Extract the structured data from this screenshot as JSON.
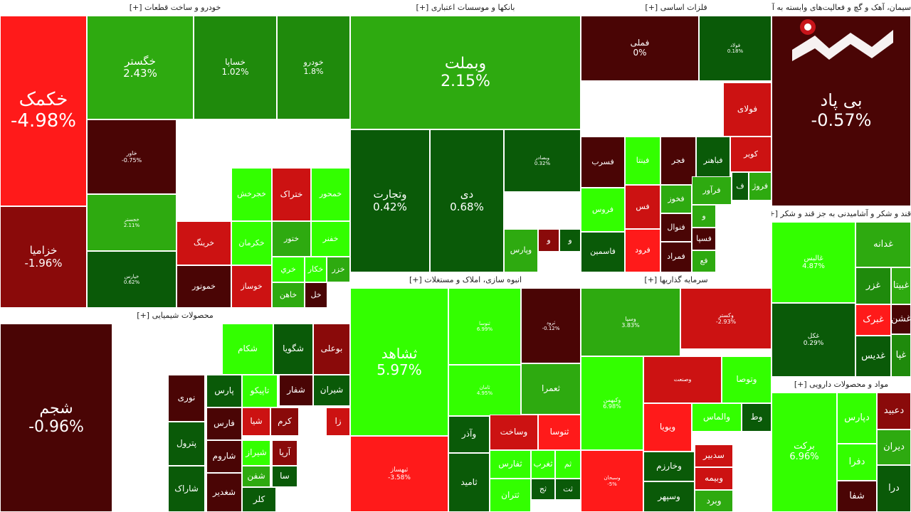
{
  "colors": {
    "bright_green": "#33ff00",
    "green": "#2eaa10",
    "mid_green": "#1f8a0c",
    "dark_green": "#0a5a08",
    "bright_red": "#ff1a1a",
    "red": "#cc1212",
    "dark_red": "#8a0a0a",
    "darkest_red": "#4a0505"
  },
  "chart_data": {
    "type": "heatmap",
    "sectors": [
      {
        "name": "خودرو و ساخت قطعات [+]",
        "tiles": [
          {
            "symbol": "خکمک",
            "change": "-4.98%"
          },
          {
            "symbol": "خگستر",
            "change": "2.43%"
          },
          {
            "symbol": "خساپا",
            "change": "1.02%"
          },
          {
            "symbol": "خودرو",
            "change": "1.8%"
          },
          {
            "symbol": "خاور",
            "change": "-0.75%"
          },
          {
            "symbol": "خزامیا",
            "change": "-1.96%"
          },
          {
            "symbol": "خجستر",
            "change": "2.11%"
          },
          {
            "symbol": "خپارس",
            "change": "0.62%"
          },
          {
            "symbol": "ختراک",
            "change": ""
          },
          {
            "symbol": "خجرخش",
            "change": ""
          },
          {
            "symbol": "خمحور",
            "change": ""
          },
          {
            "symbol": "خرینگ",
            "change": ""
          },
          {
            "symbol": "خکرمان",
            "change": ""
          },
          {
            "symbol": "ختور",
            "change": ""
          },
          {
            "symbol": "خفنر",
            "change": ""
          },
          {
            "symbol": "خموتور",
            "change": ""
          },
          {
            "symbol": "خوساز",
            "change": ""
          },
          {
            "symbol": "خري",
            "change": ""
          },
          {
            "symbol": "خکار",
            "change": ""
          },
          {
            "symbol": "خزر",
            "change": ""
          },
          {
            "symbol": "خاهن",
            "change": ""
          },
          {
            "symbol": "خل",
            "change": ""
          }
        ]
      },
      {
        "name": "بانکها و موسسات اعتباری [+]",
        "tiles": [
          {
            "symbol": "وبملت",
            "change": "2.15%"
          },
          {
            "symbol": "وتجارت",
            "change": "0.42%"
          },
          {
            "symbol": "دی",
            "change": "0.68%"
          },
          {
            "symbol": "وبصادر",
            "change": "0.32%"
          },
          {
            "symbol": "وپارس",
            "change": ""
          },
          {
            "symbol": "و",
            "change": ""
          },
          {
            "symbol": "و",
            "change": ""
          }
        ]
      },
      {
        "name": "فلزات اساسی [+]",
        "tiles": [
          {
            "symbol": "فملی",
            "change": "0%"
          },
          {
            "symbol": "فولاد",
            "change": "0.18%"
          },
          {
            "symbol": "فولای",
            "change": ""
          },
          {
            "symbol": "فسرب",
            "change": ""
          },
          {
            "symbol": "فینتا",
            "change": ""
          },
          {
            "symbol": "فجر",
            "change": ""
          },
          {
            "symbol": "فباهنر",
            "change": ""
          },
          {
            "symbol": "کویر",
            "change": ""
          },
          {
            "symbol": "فروس",
            "change": ""
          },
          {
            "symbol": "فس",
            "change": ""
          },
          {
            "symbol": "فخوز",
            "change": ""
          },
          {
            "symbol": "فرآور",
            "change": ""
          },
          {
            "symbol": "ف",
            "change": ""
          },
          {
            "symbol": "فروژ",
            "change": ""
          },
          {
            "symbol": "فنوال",
            "change": ""
          },
          {
            "symbol": "و",
            "change": ""
          },
          {
            "symbol": "فرود",
            "change": ""
          },
          {
            "symbol": "فسپا",
            "change": ""
          },
          {
            "symbol": "فاسمین",
            "change": ""
          },
          {
            "symbol": "فمراد",
            "change": ""
          },
          {
            "symbol": "فع",
            "change": ""
          }
        ]
      },
      {
        "name": "سیمان، آهک و گچ و فعالیت‌های وابسته به آن [+]",
        "tiles": [
          {
            "symbol": "بی پاد",
            "change": "-0.57%"
          }
        ]
      },
      {
        "name": "قند و شکر و آشامیدنی به جز قند و شکر [+]",
        "tiles": [
          {
            "symbol": "غالبس",
            "change": "4.87%"
          },
          {
            "symbol": "غدانه",
            "change": ""
          },
          {
            "symbol": "غزر",
            "change": ""
          },
          {
            "symbol": "غبیتا",
            "change": ""
          },
          {
            "symbol": "غکل",
            "change": "0.29%"
          },
          {
            "symbol": "غشن",
            "change": ""
          },
          {
            "symbol": "غبرک",
            "change": ""
          },
          {
            "symbol": "غدیس",
            "change": ""
          },
          {
            "symbol": "غپا",
            "change": ""
          }
        ]
      },
      {
        "name": "مواد و محصولات دارویی [+]",
        "tiles": [
          {
            "symbol": "برکت",
            "change": "6.96%"
          },
          {
            "symbol": "دپارس",
            "change": ""
          },
          {
            "symbol": "دفرا",
            "change": ""
          },
          {
            "symbol": "شفا",
            "change": ""
          },
          {
            "symbol": "دعبید",
            "change": ""
          },
          {
            "symbol": "دیران",
            "change": ""
          },
          {
            "symbol": "درا",
            "change": ""
          }
        ]
      },
      {
        "name": "محصولات شیمیایی [+]",
        "tiles": [
          {
            "symbol": "شجم",
            "change": "-0.96%"
          },
          {
            "symbol": "شگویا",
            "change": ""
          },
          {
            "symbol": "بوعلی",
            "change": ""
          },
          {
            "symbol": "شکام",
            "change": ""
          },
          {
            "symbol": "نوری",
            "change": ""
          },
          {
            "symbol": "پارس",
            "change": ""
          },
          {
            "symbol": "تاپیکو",
            "change": ""
          },
          {
            "symbol": "شفار",
            "change": ""
          },
          {
            "symbol": "شیران",
            "change": ""
          },
          {
            "symbol": "پترول",
            "change": ""
          },
          {
            "symbol": "فارس",
            "change": ""
          },
          {
            "symbol": "شیا",
            "change": ""
          },
          {
            "symbol": "کرم",
            "change": ""
          },
          {
            "symbol": "زا",
            "change": ""
          },
          {
            "symbol": "شاروم",
            "change": ""
          },
          {
            "symbol": "شیراز",
            "change": ""
          },
          {
            "symbol": "آریا",
            "change": ""
          },
          {
            "symbol": "شاراک",
            "change": ""
          },
          {
            "symbol": "شفن",
            "change": ""
          },
          {
            "symbol": "سا",
            "change": ""
          },
          {
            "symbol": "شغدیر",
            "change": ""
          },
          {
            "symbol": "کلر",
            "change": ""
          }
        ]
      },
      {
        "name": "انبوه سازی، املاک و مستغلات [+]",
        "tiles": [
          {
            "symbol": "ثشاهد",
            "change": "5.97%"
          },
          {
            "symbol": "ثبهساز",
            "change": "-3.58%"
          },
          {
            "symbol": "ثنوسا",
            "change": "6.99%"
          },
          {
            "symbol": "ثامان",
            "change": "4.95%"
          },
          {
            "symbol": "ثرود",
            "change": "-0.12%"
          },
          {
            "symbol": "ثعمرا",
            "change": ""
          },
          {
            "symbol": "وساخت",
            "change": ""
          },
          {
            "symbol": "ثنوسا",
            "change": ""
          },
          {
            "symbol": "وآذر",
            "change": ""
          },
          {
            "symbol": "ثفارس",
            "change": ""
          },
          {
            "symbol": "ثغرب",
            "change": ""
          },
          {
            "symbol": "ثم",
            "change": ""
          },
          {
            "symbol": "ثامید",
            "change": ""
          },
          {
            "symbol": "ثج",
            "change": ""
          },
          {
            "symbol": "ثت",
            "change": ""
          },
          {
            "symbol": "ثتران",
            "change": ""
          }
        ]
      },
      {
        "name": "سرمایه گذاریها [+]",
        "tiles": [
          {
            "symbol": "وسپا",
            "change": "3.83%"
          },
          {
            "symbol": "وکستر",
            "change": "-2.93%"
          },
          {
            "symbol": "وکبهمن",
            "change": "6.98%"
          },
          {
            "symbol": "وصنعت",
            "change": ""
          },
          {
            "symbol": "وتوصا",
            "change": ""
          },
          {
            "symbol": "ویویا",
            "change": ""
          },
          {
            "symbol": "والماس",
            "change": ""
          },
          {
            "symbol": "وط",
            "change": ""
          },
          {
            "symbol": "وسبحان",
            "change": "-5%"
          },
          {
            "symbol": "وخارزم",
            "change": ""
          },
          {
            "symbol": "سدبیر",
            "change": ""
          },
          {
            "symbol": "وبیمه",
            "change": ""
          },
          {
            "symbol": "وسپهر",
            "change": ""
          },
          {
            "symbol": "وبرد",
            "change": ""
          }
        ]
      }
    ]
  }
}
